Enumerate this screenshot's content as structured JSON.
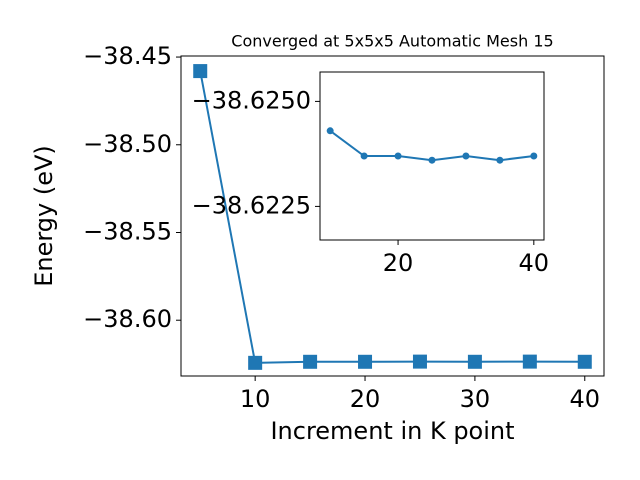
{
  "chart_data": [
    {
      "type": "line",
      "title": "Converged at 5x5x5 Automatic Mesh 15",
      "x_label": "Increment in K point",
      "y_label": "Energy (eV)",
      "x": [
        5,
        10,
        15,
        20,
        25,
        30,
        35,
        40
      ],
      "series": [
        {
          "color": "#1f77b4",
          "marker": "square",
          "values": [
            -38.458,
            -38.6243,
            -38.6237,
            -38.6237,
            -38.6236,
            -38.6237,
            -38.6236,
            -38.6237
          ]
        }
      ],
      "xlim": [
        3.25,
        41.75
      ],
      "xticks": [
        10,
        20,
        30,
        40
      ],
      "ylim": [
        -38.6318,
        -38.4494
      ],
      "yticks": [
        {
          "value": -38.45,
          "label": "−38.45"
        },
        {
          "value": -38.5,
          "label": "−38.50"
        },
        {
          "value": -38.55,
          "label": "−38.55"
        },
        {
          "value": -38.6,
          "label": "−38.60"
        }
      ]
    },
    {
      "type": "line",
      "x": [
        10,
        15,
        20,
        25,
        30,
        35,
        40
      ],
      "series": [
        {
          "color": "#1f77b4",
          "marker": "circle",
          "values": [
            -38.6243,
            -38.6237,
            -38.6237,
            -38.6236,
            -38.6237,
            -38.6236,
            -38.6237
          ]
        }
      ],
      "xlim": [
        8.5,
        41.5
      ],
      "xticks": [
        20,
        40
      ],
      "ylim": [
        -38.6217,
        -38.6257
      ],
      "yticks": [
        {
          "value": -38.625,
          "label": "−38.6250"
        },
        {
          "value": -38.6225,
          "label": "−38.6225"
        }
      ]
    }
  ]
}
